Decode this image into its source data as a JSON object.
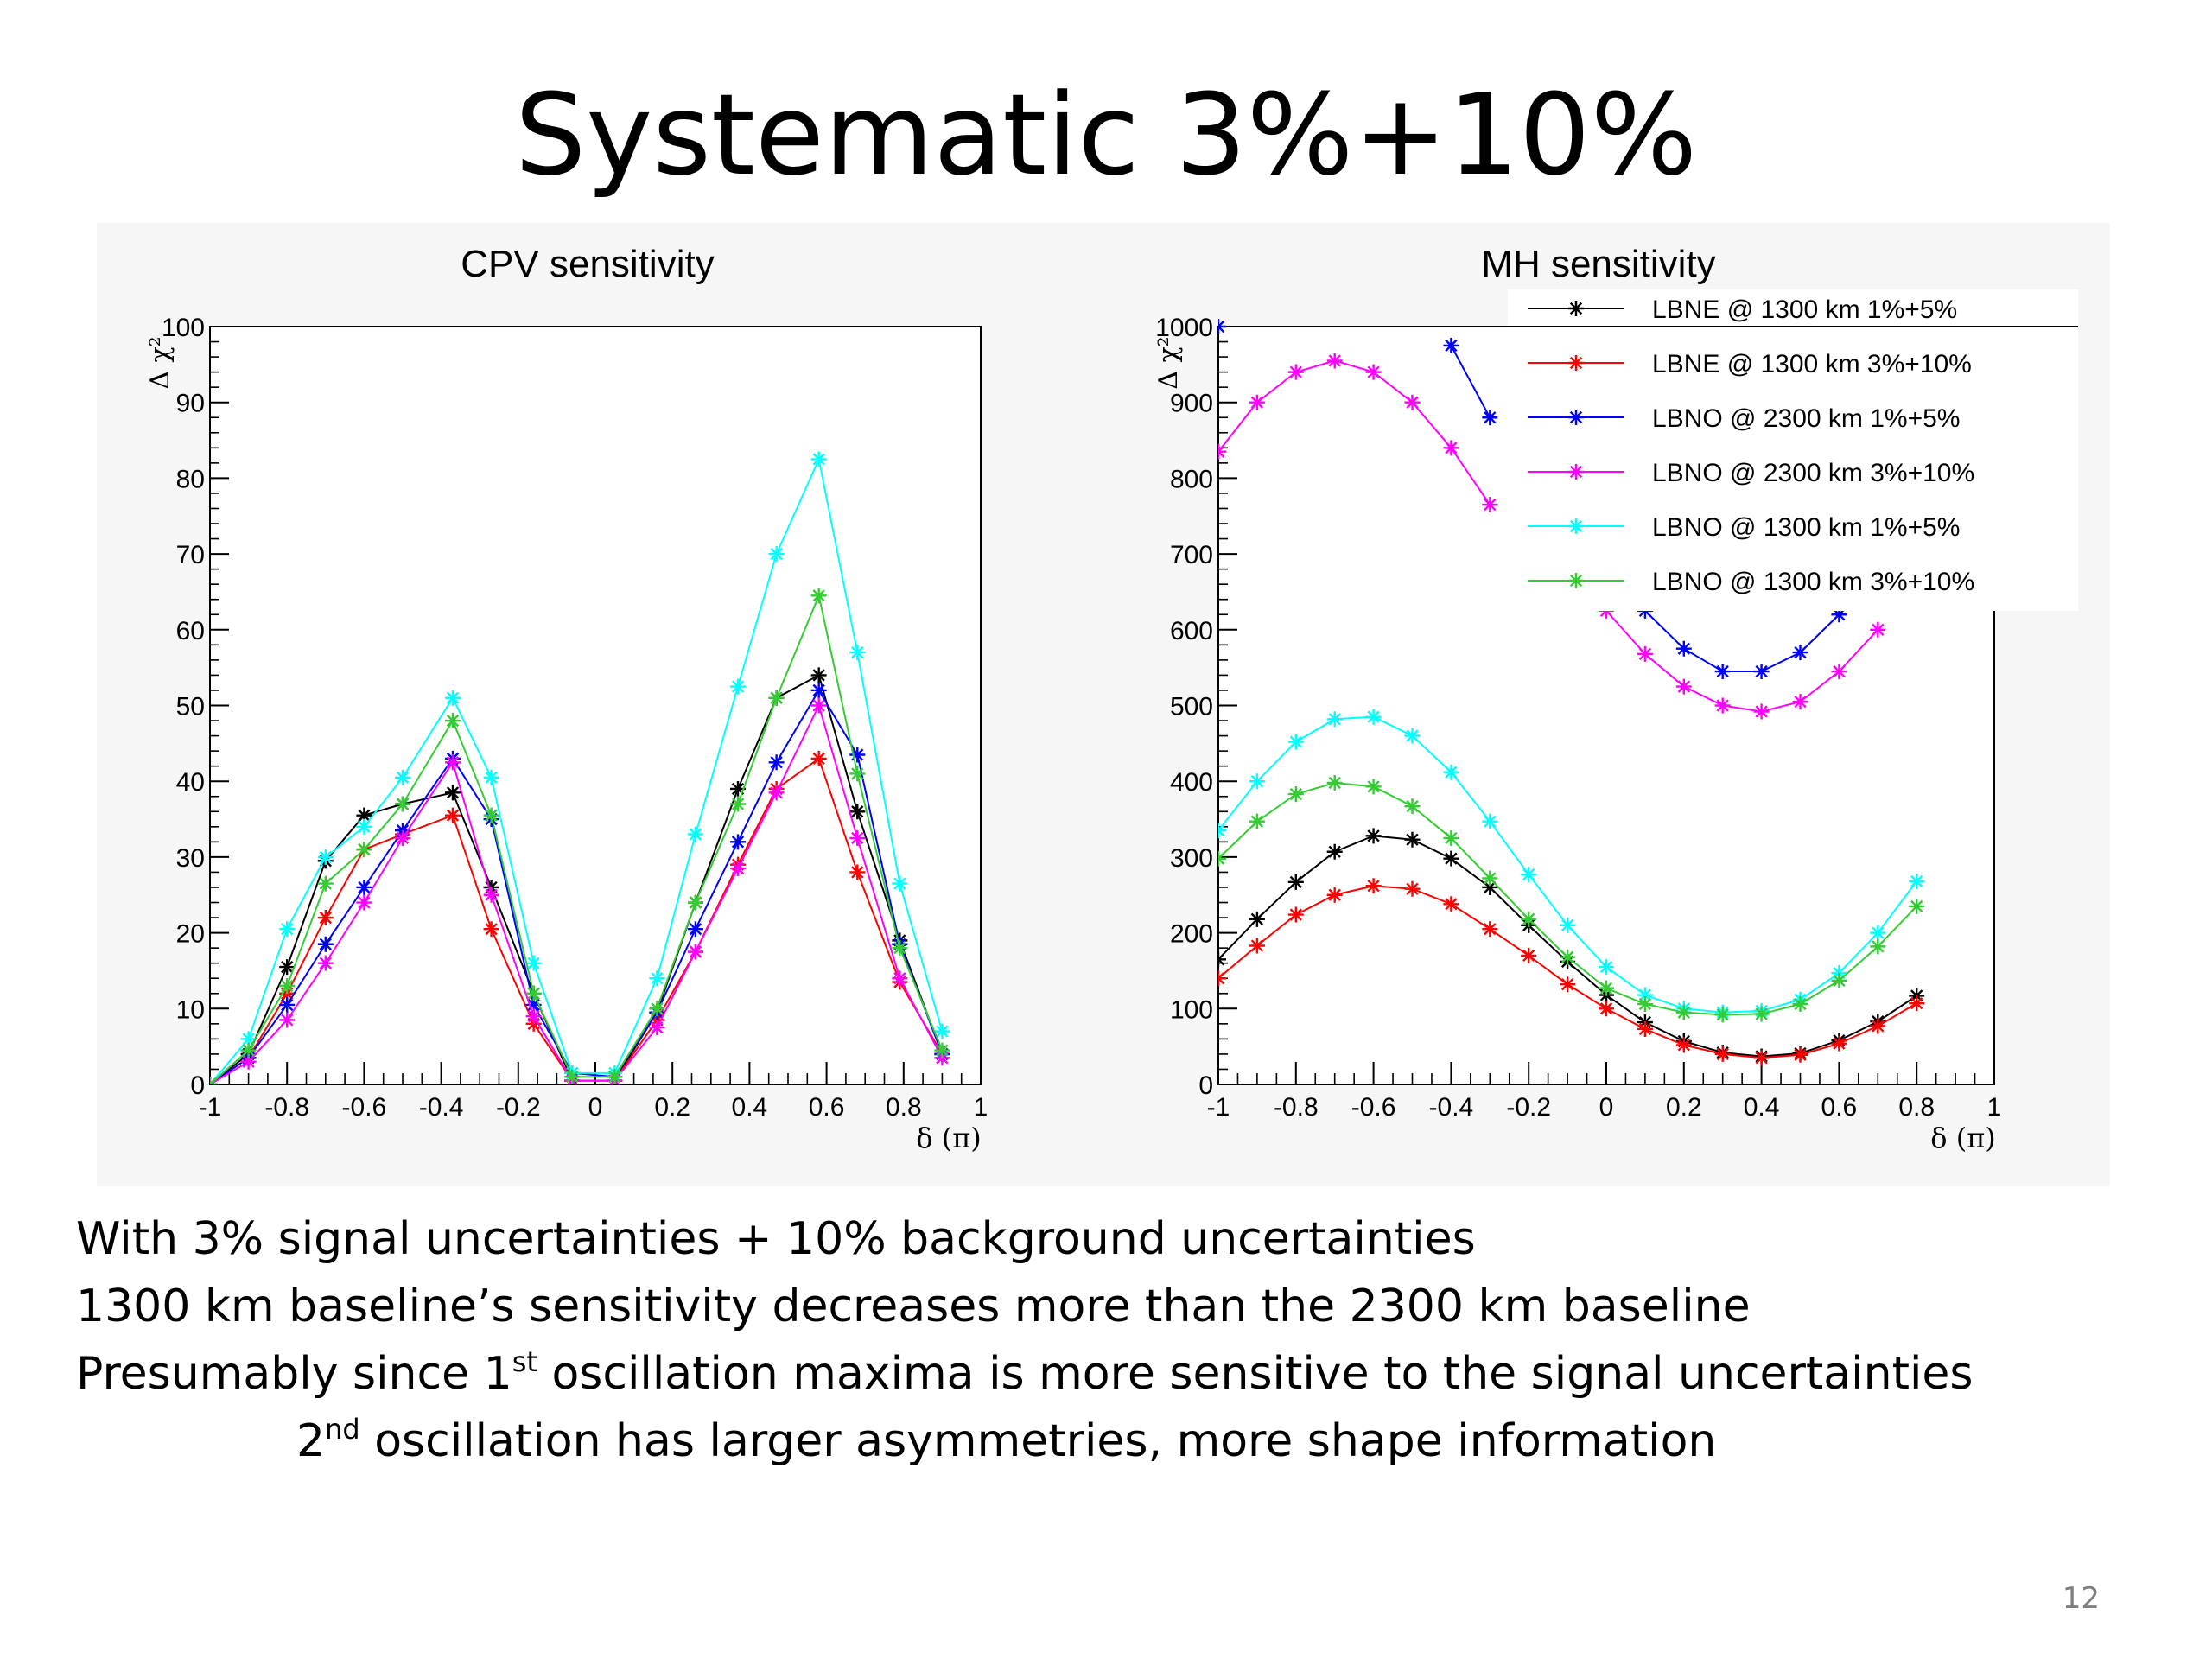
{
  "slide": {
    "title": "Systematic 3%+10%",
    "page_number": "12"
  },
  "body": {
    "line1": "With 3% signal uncertainties + 10% background uncertainties",
    "line2": "1300 km baseline’s sensitivity decreases more than the 2300 km baseline",
    "line3_pre": "Presumably since 1",
    "line3_sup": "st",
    "line3_post": " oscillation maxima is more sensitive to the signal uncertainties",
    "line4_pre": "2",
    "line4_sup": "nd",
    "line4_post": " oscillation has larger asymmetries, more shape information"
  },
  "colors": {
    "LBNE 1%+5%": "#000000",
    "LBNE 3%+10%": "#ff0000",
    "LBNO 2300 1%+5%": "#0000ff",
    "LBNO 2300 3%+10%": "#ff00ff",
    "LBNO 1300 1%+5%": "#00ffff",
    "LBNO 1300 3%+10%": "#33cc33"
  },
  "chart_data": [
    {
      "type": "line",
      "title": "CPV sensitivity",
      "xlabel": "δ (π)",
      "ylabel": "Δ χ²",
      "xlim": [
        -1,
        1
      ],
      "ylim": [
        0,
        100
      ],
      "xticks": [
        "-1",
        "-0.8",
        "-0.6",
        "-0.4",
        "-0.2",
        "0",
        "0.2",
        "0.4",
        "0.6",
        "0.8",
        "1"
      ],
      "yticks": [
        "0",
        "10",
        "20",
        "30",
        "40",
        "50",
        "60",
        "70",
        "80",
        "90",
        "100"
      ],
      "marker": "asterisk",
      "x": [
        -1,
        -0.9,
        -0.8,
        -0.7,
        -0.6,
        -0.5,
        -0.37,
        -0.27,
        -0.16,
        -0.06,
        0.05,
        0.16,
        0.26,
        0.37,
        0.47,
        0.58,
        0.68,
        0.79,
        0.9
      ],
      "series": [
        {
          "name": "LBNE @ 1300 km 1%+5%",
          "color": "#000000",
          "values": [
            0,
            4,
            15.5,
            29.5,
            35.5,
            37,
            38.5,
            26,
            12,
            0.5,
            0.5,
            9.5,
            24,
            39,
            51,
            54,
            36,
            19,
            4
          ]
        },
        {
          "name": "LBNE @ 1300 km 3%+10%",
          "color": "#ff0000",
          "values": [
            0,
            3.5,
            12,
            22,
            31,
            33,
            35.5,
            20.5,
            8,
            0.5,
            0.5,
            8.5,
            17.5,
            29,
            39,
            43,
            28,
            13.5,
            4
          ]
        },
        {
          "name": "LBNO @ 2300 km 1%+5%",
          "color": "#0000ff",
          "values": [
            0,
            3.5,
            10.5,
            18.5,
            26,
            33.5,
            43,
            35,
            10.5,
            1.5,
            1,
            9.5,
            20.5,
            32,
            42.5,
            52,
            43.5,
            18.5,
            4
          ]
        },
        {
          "name": "LBNO @ 2300 km 3%+10%",
          "color": "#ff00ff",
          "values": [
            0,
            3,
            8.5,
            16,
            24,
            32.5,
            42.5,
            25,
            9,
            0.5,
            0.5,
            7.5,
            17.5,
            28.5,
            38.5,
            50,
            32.5,
            14,
            3.5
          ]
        },
        {
          "name": "LBNO @ 1300 km 1%+5%",
          "color": "#00ffff",
          "values": [
            0,
            6,
            20.5,
            30,
            34,
            40.5,
            51,
            40.5,
            16,
            1.5,
            1.5,
            14,
            33,
            52.5,
            70,
            82.5,
            57,
            26.5,
            7
          ]
        },
        {
          "name": "LBNO @ 1300 km 3%+10%",
          "color": "#33cc33",
          "values": [
            0,
            4.5,
            13,
            26.5,
            31,
            37,
            48,
            35.5,
            12,
            1,
            1,
            10,
            24,
            37,
            51,
            64.5,
            41,
            18,
            4.5
          ]
        }
      ]
    },
    {
      "type": "line",
      "title": "MH sensitivity",
      "xlabel": "δ (π)",
      "ylabel": "Δ χ²",
      "xlim": [
        -1,
        1
      ],
      "ylim": [
        0,
        1000
      ],
      "xticks": [
        "-1",
        "-0.8",
        "-0.6",
        "-0.4",
        "-0.2",
        "0",
        "0.2",
        "0.4",
        "0.6",
        "0.8",
        "1"
      ],
      "yticks": [
        "0",
        "100",
        "200",
        "300",
        "400",
        "500",
        "600",
        "700",
        "800",
        "900",
        "1000"
      ],
      "marker": "asterisk",
      "legend_position": "top-right",
      "x": [
        -1,
        -0.9,
        -0.8,
        -0.7,
        -0.6,
        -0.5,
        -0.4,
        -0.3,
        -0.2,
        -0.1,
        0,
        0.1,
        0.2,
        0.3,
        0.4,
        0.5,
        0.6,
        0.7,
        0.8,
        0.9
      ],
      "series": [
        {
          "name": "LBNE @ 1300 km 1%+5%",
          "color": "#000000",
          "values": [
            165,
            218,
            267,
            307,
            328,
            323,
            298,
            260,
            210,
            162,
            118,
            82,
            57,
            42,
            37,
            41,
            58,
            83,
            117,
            null
          ]
        },
        {
          "name": "LBNE @ 1300 km 3%+10%",
          "color": "#ff0000",
          "values": [
            140,
            183,
            224,
            250,
            262,
            258,
            238,
            205,
            170,
            132,
            100,
            73,
            52,
            40,
            35,
            39,
            54,
            77,
            107,
            null
          ]
        },
        {
          "name": "LBNO @ 2300 km 1%+5%",
          "color": "#0000ff",
          "values": [
            1000,
            null,
            null,
            null,
            null,
            null,
            975,
            880,
            null,
            null,
            null,
            625,
            575,
            545,
            545,
            570,
            620,
            null,
            null,
            null
          ]
        },
        {
          "name": "LBNO @ 2300 km 3%+10%",
          "color": "#ff00ff",
          "values": [
            835,
            900,
            940,
            955,
            940,
            900,
            840,
            765,
            null,
            null,
            625,
            568,
            525,
            500,
            492,
            505,
            545,
            600,
            null,
            null
          ]
        },
        {
          "name": "LBNO @ 1300 km 1%+5%",
          "color": "#00ffff",
          "values": [
            335,
            400,
            452,
            482,
            485,
            460,
            412,
            347,
            277,
            210,
            155,
            118,
            100,
            95,
            97,
            112,
            147,
            200,
            268,
            null
          ]
        },
        {
          "name": "LBNO @ 1300 km 3%+10%",
          "color": "#33cc33",
          "values": [
            298,
            347,
            383,
            398,
            393,
            367,
            325,
            272,
            218,
            168,
            127,
            106,
            95,
            92,
            93,
            106,
            137,
            182,
            235,
            null
          ]
        }
      ]
    }
  ]
}
